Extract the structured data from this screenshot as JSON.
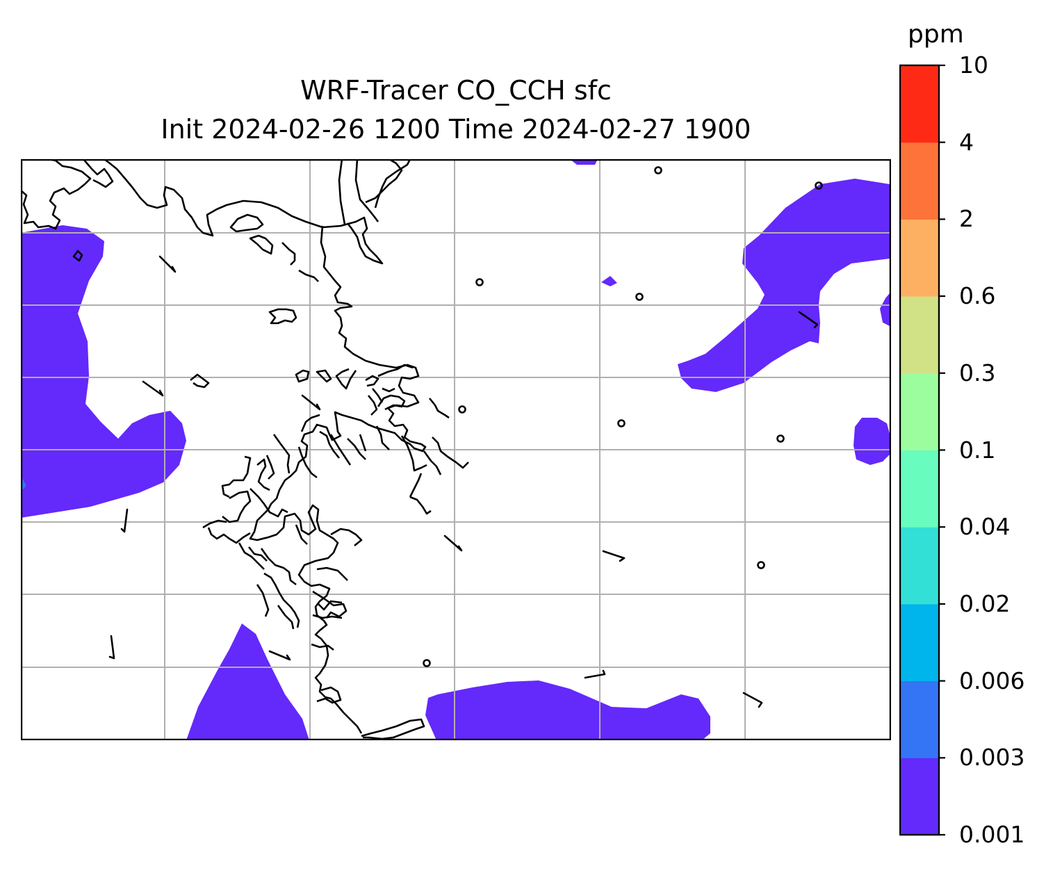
{
  "title": {
    "line1": "WRF-Tracer CO_CCH sfc",
    "line2": "Init 2024-02-26 1200 Time 2024-02-27 1900"
  },
  "colorbar": {
    "unit": "ppm",
    "levels": [
      "0.001",
      "0.003",
      "0.006",
      "0.02",
      "0.04",
      "0.1",
      "0.3",
      "0.6",
      "2",
      "4",
      "10"
    ],
    "colors": [
      "#6429fb",
      "#3375f4",
      "#00b5ec",
      "#32e0d6",
      "#69fcbf",
      "#9cfd9f",
      "#d0e285",
      "#feb062",
      "#fd733a",
      "#ff2a16"
    ]
  },
  "map": {
    "gridlines": true,
    "gridline_color": "#b0b0b0",
    "fill_color": "#6429fb",
    "coastline_color": "#000000",
    "features": [
      "tracer-plume",
      "coastline",
      "wind-barb",
      "calm-wind-marker"
    ]
  }
}
